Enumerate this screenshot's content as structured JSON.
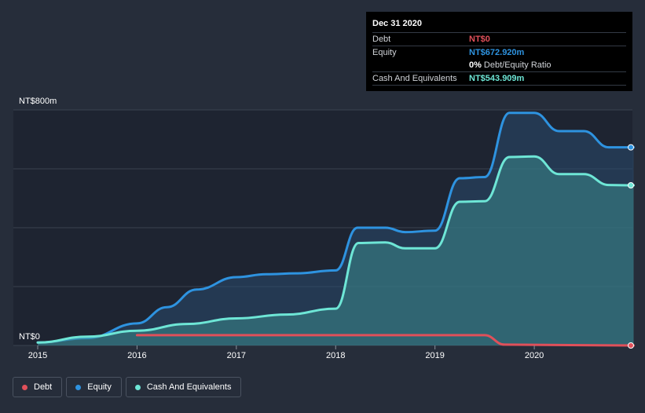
{
  "tooltip": {
    "date": "Dec 31 2020",
    "debt_label": "Debt",
    "debt_value": "NT$0",
    "equity_label": "Equity",
    "equity_value": "NT$672.920m",
    "ratio_value": "0%",
    "ratio_label": "Debt/Equity Ratio",
    "cash_label": "Cash And Equivalents",
    "cash_value": "NT$543.909m"
  },
  "legend": {
    "debt": "Debt",
    "equity": "Equity",
    "cash": "Cash And Equivalents"
  },
  "colors": {
    "background": "#262d3a",
    "plot_background": "#1e2431",
    "debt": "#e0505a",
    "equity": "#2e93e0",
    "cash": "#6ee6d6"
  },
  "chart_data": {
    "type": "area",
    "y_labels": [
      "NT$800m",
      "NT$0"
    ],
    "ylim": [
      0,
      800
    ],
    "xlim": [
      2015,
      2021
    ],
    "x_ticks": [
      "2015",
      "2016",
      "2017",
      "2018",
      "2019",
      "2020"
    ],
    "grid": true,
    "legend_position": "bottom-left",
    "series": [
      {
        "name": "Equity",
        "points": [
          [
            2015.0,
            10
          ],
          [
            2015.5,
            25
          ],
          [
            2016.0,
            75
          ],
          [
            2016.3,
            130
          ],
          [
            2016.6,
            190
          ],
          [
            2017.0,
            232
          ],
          [
            2017.3,
            242
          ],
          [
            2017.6,
            245
          ],
          [
            2018.0,
            255
          ],
          [
            2018.22,
            400
          ],
          [
            2018.5,
            400
          ],
          [
            2018.7,
            385
          ],
          [
            2019.0,
            390
          ],
          [
            2019.25,
            568
          ],
          [
            2019.5,
            572
          ],
          [
            2019.75,
            790
          ],
          [
            2020.0,
            790
          ],
          [
            2020.25,
            728
          ],
          [
            2020.5,
            728
          ],
          [
            2020.75,
            673
          ],
          [
            2021.0,
            673
          ]
        ]
      },
      {
        "name": "Cash And Equivalents",
        "points": [
          [
            2015.0,
            10
          ],
          [
            2015.5,
            30
          ],
          [
            2016.0,
            50
          ],
          [
            2016.5,
            73
          ],
          [
            2017.0,
            92
          ],
          [
            2017.5,
            105
          ],
          [
            2018.0,
            125
          ],
          [
            2018.23,
            348
          ],
          [
            2018.5,
            350
          ],
          [
            2018.7,
            330
          ],
          [
            2019.0,
            330
          ],
          [
            2019.25,
            488
          ],
          [
            2019.5,
            490
          ],
          [
            2019.75,
            640
          ],
          [
            2020.0,
            642
          ],
          [
            2020.25,
            582
          ],
          [
            2020.5,
            582
          ],
          [
            2020.75,
            545
          ],
          [
            2021.0,
            544
          ]
        ]
      },
      {
        "name": "Debt",
        "points": [
          [
            2016.0,
            35
          ],
          [
            2019.5,
            35
          ],
          [
            2019.7,
            3
          ],
          [
            2021.0,
            0
          ]
        ]
      }
    ]
  }
}
